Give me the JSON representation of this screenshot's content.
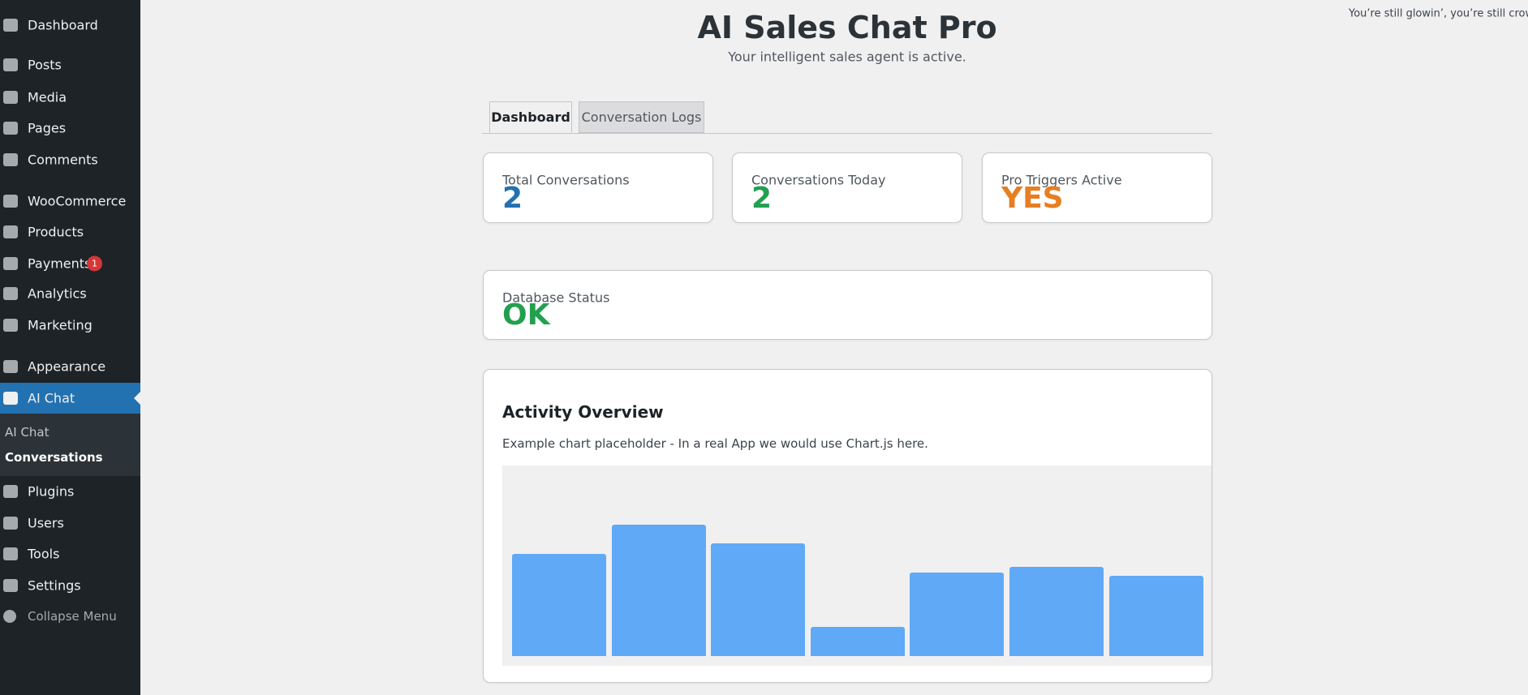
{
  "top_right": "You’re still glowin’, you’re still crowin’",
  "sidebar": {
    "menu": [
      "Dashboard",
      "Posts",
      "Media",
      "Pages",
      "Comments",
      "WooCommerce",
      "Products",
      "Payments",
      "Analytics",
      "Marketing",
      "Appearance",
      "AI Chat",
      "Plugins",
      "Users",
      "Tools",
      "Settings",
      "Collapse Menu"
    ],
    "badge": "1",
    "submenu": [
      "AI Chat",
      "Conversations"
    ]
  },
  "header": {
    "title": "AI Sales Chat Pro",
    "subtitle": "Your intelligent sales agent is active."
  },
  "tabs": [
    "Dashboard",
    "Conversation Logs"
  ],
  "cards": [
    {
      "label": "Total Conversations",
      "value": "2"
    },
    {
      "label": "Conversations Today",
      "value": "2"
    },
    {
      "label": "Pro Triggers Active",
      "value": "YES"
    }
  ],
  "status": {
    "label": "Database Status",
    "value": "OK"
  },
  "activity": {
    "title": "Activity Overview",
    "description": "Example chart placeholder - In a real App we would use Chart.js here.",
    "values": [
      70,
      90,
      77,
      20,
      57,
      61,
      55
    ]
  }
}
